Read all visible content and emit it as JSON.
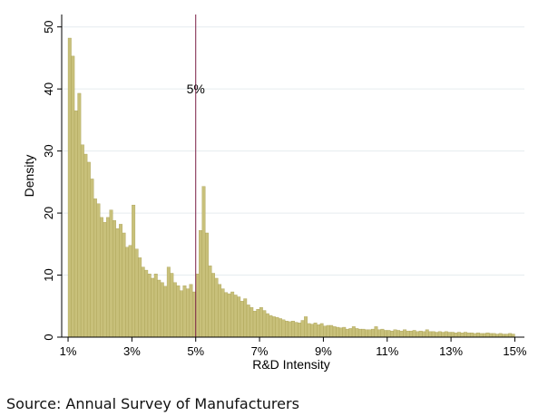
{
  "chart_data": {
    "type": "bar",
    "title": "",
    "xlabel": "R&D Intensity",
    "ylabel": "Density",
    "xlim": [
      0.8,
      15.3
    ],
    "ylim": [
      0,
      52
    ],
    "x_ticks": [
      1,
      3,
      5,
      7,
      9,
      11,
      13,
      15
    ],
    "x_tick_labels": [
      "1%",
      "3%",
      "5%",
      "7%",
      "9%",
      "11%",
      "13%",
      "15%"
    ],
    "y_ticks": [
      0,
      10,
      20,
      30,
      40,
      50
    ],
    "y_tick_labels": [
      "0",
      "10",
      "20",
      "30",
      "40",
      "50"
    ],
    "grid": true,
    "bar_color": "#c8c07a",
    "bar_edge_color": "#a69c4e",
    "reference_line": {
      "x": 5,
      "label": "5%",
      "label_y": 40,
      "color": "#7a1f45"
    },
    "bin_start": 1.0,
    "bin_width": 0.1,
    "values": [
      48.2,
      45.3,
      36.5,
      39.3,
      31,
      29.5,
      28.2,
      25.5,
      22.3,
      21.5,
      19.3,
      18.5,
      19.3,
      20.5,
      18.8,
      17.5,
      18.2,
      16.8,
      14.5,
      14.8,
      21.3,
      14.2,
      12.8,
      11.3,
      10.8,
      10.2,
      9.5,
      10.2,
      9.2,
      8.8,
      8.2,
      11.3,
      10.3,
      8.8,
      8.3,
      7.5,
      8.3,
      7.8,
      8.5,
      7.3,
      10.2,
      17.2,
      24.3,
      16.8,
      11.5,
      10.3,
      9.5,
      8.5,
      7.8,
      7.2,
      7,
      7.3,
      6.8,
      6.5,
      5.8,
      6.2,
      5.2,
      4.8,
      4.2,
      4.5,
      4.8,
      4.3,
      3.8,
      3.5,
      3.3,
      3.2,
      3,
      2.8,
      2.6,
      2.5,
      2.6,
      2.4,
      2.3,
      2.7,
      3.3,
      2.2,
      2.1,
      2.3,
      2,
      2.2,
      1.8,
      1.9,
      1.9,
      1.7,
      1.6,
      1.5,
      1.6,
      1.3,
      1.4,
      1.7,
      1.4,
      1.3,
      1.3,
      1.2,
      1.2,
      1.3,
      1.7,
      1.2,
      1.3,
      1.1,
      1.1,
      1,
      1.2,
      1.1,
      1,
      1.2,
      1,
      1,
      1.1,
      0.9,
      1,
      0.9,
      1.2,
      0.9,
      0.9,
      0.8,
      0.9,
      0.8,
      0.9,
      0.8,
      0.8,
      0.7,
      0.8,
      0.7,
      0.8,
      0.7,
      0.7,
      0.6,
      0.7,
      0.6,
      0.6,
      0.7,
      0.6,
      0.6,
      0.5,
      0.6,
      0.5,
      0.5,
      0.6,
      0.5
    ]
  },
  "source_note": "Source:  Annual Survey of Manufacturers"
}
